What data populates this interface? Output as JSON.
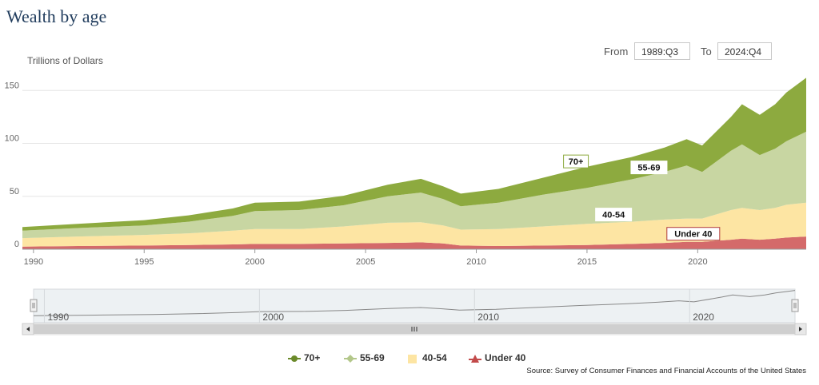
{
  "title": "Wealth by age",
  "range": {
    "from_label": "From",
    "from_value": "1989:Q3",
    "to_label": "To",
    "to_value": "2024:Q4"
  },
  "source": "Source: Survey of Consumer Finances and Financial Accounts of the United States",
  "colors": {
    "seventy_plus": "#8daa3f",
    "fiftyfive_69": "#c8d6a2",
    "forty_54": "#fde5a3",
    "under_40": "#d46a6a",
    "navigator_line": "#888888"
  },
  "chart_data": {
    "type": "area",
    "stacked": true,
    "ylabel": "Trillions of Dollars",
    "x": [
      1989.5,
      1992,
      1995,
      1997,
      1999,
      2000,
      2002,
      2004,
      2006,
      2007.5,
      2008.5,
      2009.3,
      2011,
      2013,
      2015,
      2017,
      2018.5,
      2019.5,
      2020.2,
      2021.5,
      2022,
      2022.8,
      2023.5,
      2024,
      2024.9
    ],
    "series": [
      {
        "name": "Under 40",
        "values": [
          2.5,
          3,
          3.5,
          4,
          4.5,
          5,
          5,
          5.5,
          6,
          6.5,
          5.5,
          3.5,
          3,
          3.5,
          4,
          5,
          6,
          7,
          7,
          9,
          10,
          9,
          10,
          11,
          12
        ]
      },
      {
        "name": "40-54",
        "values": [
          8,
          9,
          10,
          11,
          13,
          14,
          14,
          16,
          19,
          19,
          17,
          15,
          16,
          18,
          20,
          21,
          22,
          22,
          22,
          28,
          29,
          28,
          29,
          31,
          32
        ]
      },
      {
        "name": "55-69",
        "values": [
          7,
          8,
          9,
          11,
          14,
          17,
          18,
          20,
          25,
          28,
          25,
          22,
          25,
          30,
          34,
          40,
          45,
          50,
          44,
          56,
          60,
          52,
          56,
          60,
          67
        ]
      },
      {
        "name": "70+",
        "values": [
          3.5,
          4,
          5,
          6,
          7,
          8,
          8,
          9,
          11,
          13,
          12,
          12,
          13,
          16,
          20,
          21,
          23,
          25,
          25,
          32,
          38,
          38,
          42,
          46,
          51
        ]
      }
    ],
    "ylim": [
      0,
      160
    ],
    "xlim": [
      1989.5,
      2024.9
    ],
    "y_ticks": [
      "0",
      "50",
      "100",
      "150"
    ],
    "x_ticks": [
      "1990",
      "1995",
      "2000",
      "2005",
      "2010",
      "2015",
      "2020"
    ],
    "navigator_ticks": [
      "1990",
      "2000",
      "2010",
      "2020"
    ],
    "annotations": [
      {
        "label": "70+",
        "series": "70+",
        "x": 2014.5
      },
      {
        "label": "55-69",
        "series": "55-69",
        "x": 2017.8
      },
      {
        "label": "40-54",
        "series": "40-54",
        "x": 2016.2
      },
      {
        "label": "Under 40",
        "series": "Under 40",
        "x": 2019.8
      }
    ],
    "legend": {
      "position": "bottom-center",
      "items": [
        "70+",
        "55-69",
        "40-54",
        "Under 40"
      ]
    }
  }
}
